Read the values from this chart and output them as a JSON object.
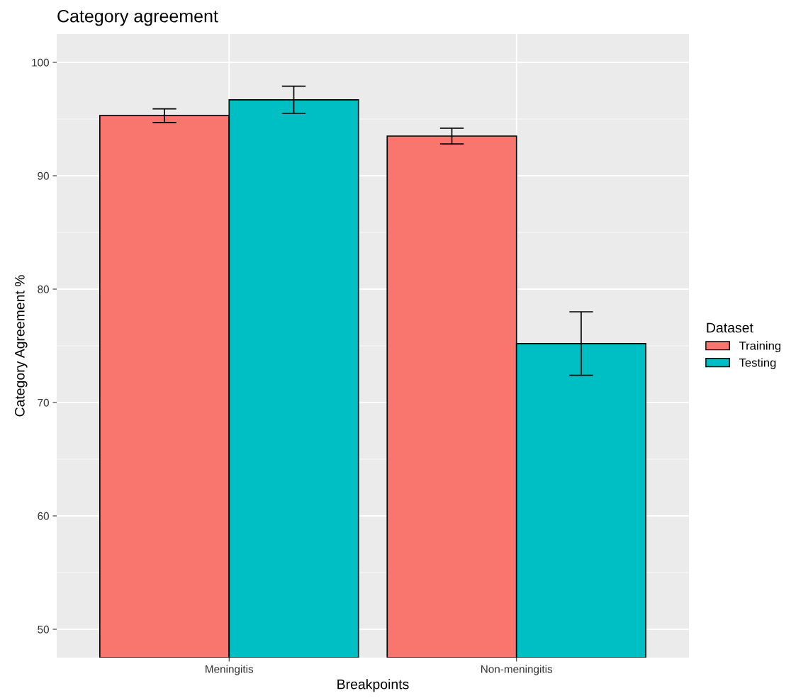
{
  "chart_data": {
    "type": "bar",
    "title": "Category agreement",
    "xlabel": "Breakpoints",
    "ylabel": "Category Agreement %",
    "legend_title": "Dataset",
    "categories": [
      "Meningitis",
      "Non-meningitis"
    ],
    "series": [
      {
        "name": "Training",
        "color": "#f8766d",
        "values": [
          95.3,
          93.5
        ],
        "errors": [
          0.6,
          0.7
        ]
      },
      {
        "name": "Testing",
        "color": "#00bfc4",
        "values": [
          96.7,
          75.2
        ],
        "errors": [
          1.2,
          2.8
        ]
      }
    ],
    "ylim": [
      47.5,
      102.5
    ],
    "yticks": [
      50,
      60,
      70,
      80,
      90,
      100
    ],
    "grid": true,
    "legend": "right"
  }
}
